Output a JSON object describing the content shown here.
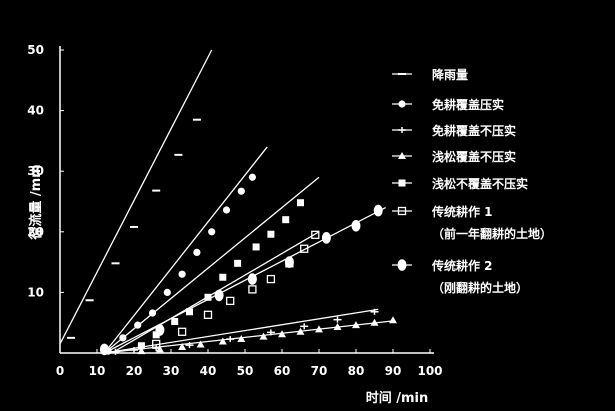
{
  "chart_data": {
    "type": "line",
    "title": "",
    "xlabel": "时间 /min",
    "ylabel": "径流量 /mm",
    "xlim": [
      0,
      100
    ],
    "ylim": [
      0,
      50
    ],
    "x_ticks": [
      "0",
      "10",
      "20",
      "30",
      "40",
      "50",
      "60",
      "70",
      "80",
      "90",
      "100"
    ],
    "y_ticks": [
      "10",
      "20",
      "30",
      "40",
      "50"
    ],
    "grid": false,
    "legend_position": "right",
    "background": "#000000",
    "foreground": "#ffffff",
    "series": [
      {
        "name": "降雨量",
        "marker": "dash",
        "line": {
          "x": [
            0,
            41
          ],
          "y": [
            1.5,
            50
          ]
        },
        "points": [
          {
            "x": 3,
            "y": 2.5
          },
          {
            "x": 8,
            "y": 8.7
          },
          {
            "x": 15,
            "y": 14.8
          },
          {
            "x": 20,
            "y": 20.8
          },
          {
            "x": 26,
            "y": 26.8
          },
          {
            "x": 32,
            "y": 32.7
          },
          {
            "x": 37,
            "y": 38.5
          }
        ]
      },
      {
        "name": "免耕覆盖压实",
        "marker": "filled-circle",
        "line": {
          "x": [
            12,
            56
          ],
          "y": [
            0,
            34
          ]
        },
        "points": [
          {
            "x": 13,
            "y": 0.3
          },
          {
            "x": 17,
            "y": 2.5
          },
          {
            "x": 21,
            "y": 4.6
          },
          {
            "x": 25,
            "y": 6.6
          },
          {
            "x": 29,
            "y": 10
          },
          {
            "x": 33,
            "y": 13
          },
          {
            "x": 37,
            "y": 16.6
          },
          {
            "x": 41,
            "y": 20
          },
          {
            "x": 45,
            "y": 23.6
          },
          {
            "x": 49,
            "y": 26.7
          },
          {
            "x": 52,
            "y": 29
          }
        ]
      },
      {
        "name": "免耕覆盖不压实",
        "marker": "plus",
        "line": {
          "x": [
            12,
            86
          ],
          "y": [
            0,
            7.2
          ]
        },
        "points": [
          {
            "x": 15,
            "y": 0.2
          },
          {
            "x": 20,
            "y": 0.5
          },
          {
            "x": 26,
            "y": 0.8
          },
          {
            "x": 35,
            "y": 1.3
          },
          {
            "x": 46,
            "y": 2.3
          },
          {
            "x": 57,
            "y": 3.4
          },
          {
            "x": 66,
            "y": 4.4
          },
          {
            "x": 75,
            "y": 5.5
          },
          {
            "x": 85,
            "y": 6.8
          }
        ]
      },
      {
        "name": "浅松覆盖不压实",
        "marker": "filled-triangle",
        "line": {
          "x": [
            12,
            90
          ],
          "y": [
            0,
            5.3
          ]
        },
        "points": [
          {
            "x": 22,
            "y": 0.3
          },
          {
            "x": 27,
            "y": 0.6
          },
          {
            "x": 33,
            "y": 1
          },
          {
            "x": 38,
            "y": 1.4
          },
          {
            "x": 44,
            "y": 1.9
          },
          {
            "x": 49,
            "y": 2.3
          },
          {
            "x": 55,
            "y": 2.7
          },
          {
            "x": 60,
            "y": 3.1
          },
          {
            "x": 65,
            "y": 3.5
          },
          {
            "x": 70,
            "y": 3.9
          },
          {
            "x": 75,
            "y": 4.3
          },
          {
            "x": 80,
            "y": 4.6
          },
          {
            "x": 85,
            "y": 5
          },
          {
            "x": 90,
            "y": 5.4
          }
        ]
      },
      {
        "name": "浅松不覆盖不压实",
        "marker": "filled-square",
        "line": {
          "x": [
            12,
            70
          ],
          "y": [
            0,
            29
          ]
        },
        "points": [
          {
            "x": 22,
            "y": 1.2
          },
          {
            "x": 26,
            "y": 3
          },
          {
            "x": 31,
            "y": 5.2
          },
          {
            "x": 35,
            "y": 6.8
          },
          {
            "x": 40,
            "y": 9.2
          },
          {
            "x": 44,
            "y": 12.5
          },
          {
            "x": 48,
            "y": 14.8
          },
          {
            "x": 53,
            "y": 17.5
          },
          {
            "x": 57,
            "y": 19.6
          },
          {
            "x": 61,
            "y": 22
          },
          {
            "x": 65,
            "y": 24.8
          }
        ]
      },
      {
        "name": "传统耕作 1\n（前一年翻耕的土地）",
        "marker": "open-square",
        "line": {
          "x": [
            14,
            70
          ],
          "y": [
            0,
            20
          ]
        },
        "points": [
          {
            "x": 26,
            "y": 1.5
          },
          {
            "x": 33,
            "y": 3.5
          },
          {
            "x": 40,
            "y": 6.3
          },
          {
            "x": 46,
            "y": 8.6
          },
          {
            "x": 52,
            "y": 10.5
          },
          {
            "x": 57,
            "y": 12.2
          },
          {
            "x": 62,
            "y": 14.8
          },
          {
            "x": 66,
            "y": 17.2
          },
          {
            "x": 69,
            "y": 19.5
          }
        ]
      },
      {
        "name": "传统耕作 2\n（刚翻耕的土地）",
        "marker": "big-filled-circle",
        "line": {
          "x": [
            12,
            88
          ],
          "y": [
            0,
            24
          ]
        },
        "points": [
          {
            "x": 12,
            "y": 0.6
          },
          {
            "x": 27,
            "y": 3.8
          },
          {
            "x": 43,
            "y": 9.5
          },
          {
            "x": 52,
            "y": 12.2
          },
          {
            "x": 62,
            "y": 15
          },
          {
            "x": 72,
            "y": 19
          },
          {
            "x": 80,
            "y": 21
          },
          {
            "x": 86,
            "y": 23.5
          }
        ]
      }
    ]
  }
}
